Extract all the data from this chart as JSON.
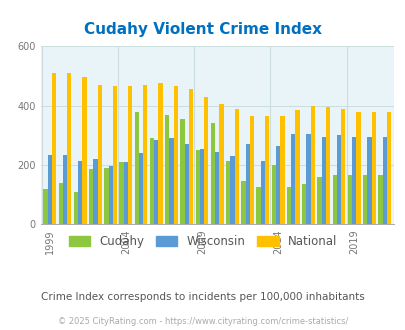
{
  "title": "Cudahy Violent Crime Index",
  "subtitle": "Crime Index corresponds to incidents per 100,000 inhabitants",
  "footer": "© 2025 CityRating.com - https://www.cityrating.com/crime-statistics/",
  "years": [
    1999,
    2000,
    2001,
    2002,
    2003,
    2004,
    2005,
    2006,
    2007,
    2008,
    2009,
    2010,
    2011,
    2012,
    2013,
    2014,
    2015,
    2016,
    2017,
    2018,
    2019,
    2020,
    2021
  ],
  "cudahy": [
    120,
    140,
    110,
    185,
    190,
    210,
    380,
    290,
    370,
    355,
    250,
    340,
    215,
    145,
    125,
    200,
    125,
    135,
    160,
    165,
    165,
    165,
    165
  ],
  "wisconsin": [
    235,
    235,
    215,
    220,
    195,
    210,
    240,
    285,
    290,
    270,
    255,
    245,
    230,
    270,
    215,
    265,
    305,
    305,
    295,
    300,
    295,
    295,
    295
  ],
  "national": [
    510,
    510,
    495,
    470,
    465,
    465,
    470,
    475,
    465,
    455,
    430,
    405,
    390,
    365,
    365,
    365,
    385,
    400,
    395,
    390,
    380,
    380,
    380
  ],
  "colors": {
    "cudahy": "#8dc63f",
    "wisconsin": "#5b9bd5",
    "national": "#ffc000"
  },
  "ylim": [
    0,
    600
  ],
  "yticks": [
    0,
    200,
    400,
    600
  ],
  "xtick_years": [
    1999,
    2004,
    2009,
    2014,
    2019
  ],
  "bg_color": "#e8f4f8",
  "title_color": "#0070c0",
  "text_color": "#555555",
  "label_color": "#777777",
  "grid_color": "#ccdddd",
  "bar_width": 0.28
}
